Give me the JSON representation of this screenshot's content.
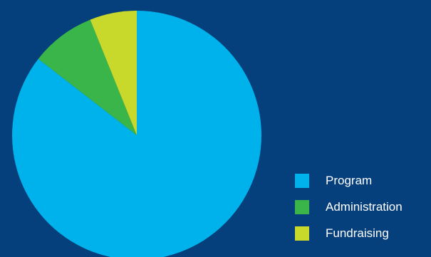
{
  "chart_data": {
    "type": "pie",
    "title": "",
    "background": "#053f7c",
    "slices": [
      {
        "label": "Program",
        "value": 85.5,
        "color": "#00b2ec"
      },
      {
        "label": "Administration",
        "value": 8.4,
        "color": "#3ab54a"
      },
      {
        "label": "Fundraising",
        "value": 6.1,
        "color": "#c8d92c"
      }
    ],
    "start_angle_deg": 0,
    "direction": "clockwise",
    "legend_position": "right"
  },
  "legend": {
    "items": [
      {
        "label": "Program",
        "color": "#00b2ec"
      },
      {
        "label": "Administration",
        "color": "#3ab54a"
      },
      {
        "label": "Fundraising",
        "color": "#c8d92c"
      }
    ]
  }
}
